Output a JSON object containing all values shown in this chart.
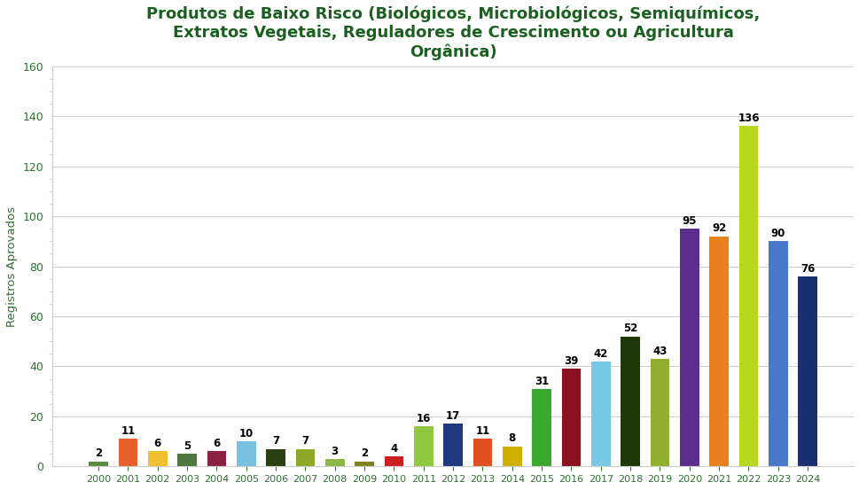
{
  "years": [
    2000,
    2001,
    2002,
    2003,
    2004,
    2005,
    2006,
    2007,
    2008,
    2009,
    2010,
    2011,
    2012,
    2013,
    2014,
    2015,
    2016,
    2017,
    2018,
    2019,
    2020,
    2021,
    2022,
    2023,
    2024
  ],
  "values": [
    2,
    11,
    6,
    5,
    6,
    10,
    7,
    7,
    3,
    2,
    4,
    16,
    17,
    11,
    8,
    31,
    39,
    42,
    52,
    43,
    95,
    92,
    136,
    90,
    76
  ],
  "colors": [
    "#5B8C3E",
    "#E8602C",
    "#F0C030",
    "#4E7840",
    "#8B2040",
    "#78C0E0",
    "#2A4010",
    "#8EA828",
    "#90B848",
    "#808020",
    "#CC2020",
    "#90C840",
    "#203880",
    "#E05020",
    "#D0B000",
    "#3CA830",
    "#8B1020",
    "#78C8E8",
    "#1E3808",
    "#90B030",
    "#5B2D8E",
    "#E88020",
    "#B8D820",
    "#4878C8",
    "#1A3070"
  ],
  "title": "Produtos de Baixo Risco (Biológicos, Microbiológicos, Semiquímicos,\nExtratos Vegetais, Reguladores de Crescimento ou Agricultura\nOrgânica)",
  "ylabel": "Registros Aprovados",
  "ylim": [
    0,
    160
  ],
  "yticks": [
    0,
    20,
    40,
    60,
    80,
    100,
    120,
    140,
    160
  ],
  "title_color": "#1B6020",
  "tick_color": "#2E7030",
  "title_fontsize": 13,
  "label_fontsize": 8.5,
  "axis_label_fontsize": 9.5,
  "background_color": "#FFFFFF",
  "grid_color": "#CCCCCC"
}
